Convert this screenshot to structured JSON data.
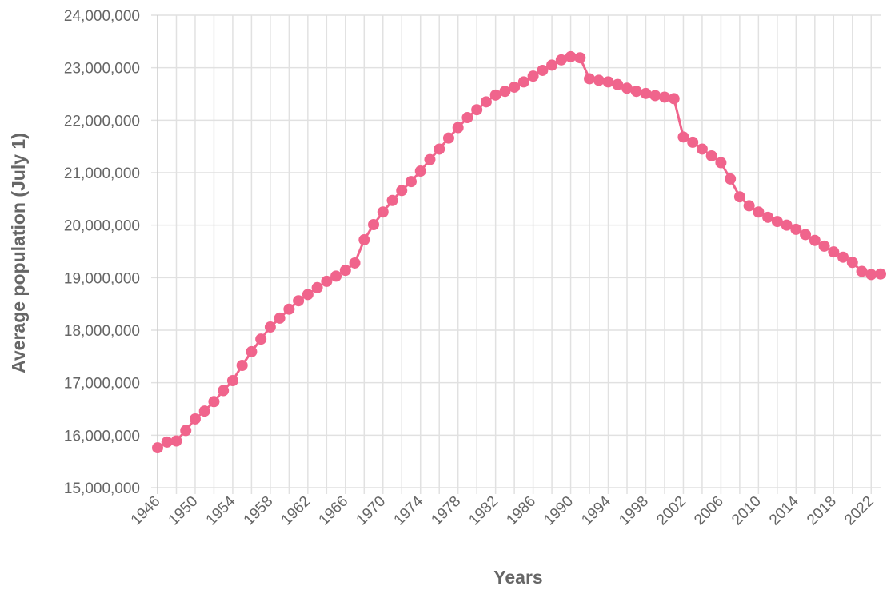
{
  "chart_data": {
    "type": "line",
    "title": "",
    "xlabel": "Years",
    "ylabel": "Average population (July 1)",
    "xlim": [
      1946,
      2023
    ],
    "ylim": [
      15000000,
      24000000
    ],
    "grid": true,
    "line_color": "#f0648c",
    "grid_color": "#e1e1e1",
    "text_color": "#666666",
    "x_ticks": [
      "1946",
      "1950",
      "1954",
      "1958",
      "1962",
      "1966",
      "1970",
      "1974",
      "1978",
      "1982",
      "1986",
      "1990",
      "1994",
      "1998",
      "2002",
      "2006",
      "2010",
      "2014",
      "2018",
      "2022"
    ],
    "y_ticks": [
      "15,000,000",
      "16,000,000",
      "17,000,000",
      "18,000,000",
      "19,000,000",
      "20,000,000",
      "21,000,000",
      "22,000,000",
      "23,000,000",
      "24,000,000"
    ],
    "x": [
      1946,
      1947,
      1948,
      1949,
      1950,
      1951,
      1952,
      1953,
      1954,
      1955,
      1956,
      1957,
      1958,
      1959,
      1960,
      1961,
      1962,
      1963,
      1964,
      1965,
      1966,
      1967,
      1968,
      1969,
      1970,
      1971,
      1972,
      1973,
      1974,
      1975,
      1976,
      1977,
      1978,
      1979,
      1980,
      1981,
      1982,
      1983,
      1984,
      1985,
      1986,
      1987,
      1988,
      1989,
      1990,
      1991,
      1992,
      1993,
      1994,
      1995,
      1996,
      1997,
      1998,
      1999,
      2000,
      2001,
      2002,
      2003,
      2004,
      2005,
      2006,
      2007,
      2008,
      2009,
      2010,
      2011,
      2012,
      2013,
      2014,
      2015,
      2016,
      2017,
      2018,
      2019,
      2020,
      2021,
      2022,
      2023
    ],
    "values": [
      15760000,
      15870000,
      15890000,
      16090000,
      16310000,
      16460000,
      16640000,
      16850000,
      17040000,
      17330000,
      17590000,
      17830000,
      18060000,
      18230000,
      18400000,
      18560000,
      18680000,
      18810000,
      18930000,
      19030000,
      19140000,
      19280000,
      19720000,
      20010000,
      20250000,
      20470000,
      20660000,
      20830000,
      21030000,
      21250000,
      21450000,
      21660000,
      21860000,
      22050000,
      22200000,
      22350000,
      22480000,
      22550000,
      22630000,
      22730000,
      22840000,
      22950000,
      23050000,
      23150000,
      23210000,
      23190000,
      22790000,
      22760000,
      22730000,
      22680000,
      22610000,
      22550000,
      22510000,
      22470000,
      22440000,
      22410000,
      21680000,
      21580000,
      21450000,
      21320000,
      21190000,
      20880000,
      20540000,
      20370000,
      20250000,
      20150000,
      20070000,
      20000000,
      19920000,
      19820000,
      19710000,
      19600000,
      19490000,
      19390000,
      19290000,
      19120000,
      19060000,
      19070000
    ]
  }
}
